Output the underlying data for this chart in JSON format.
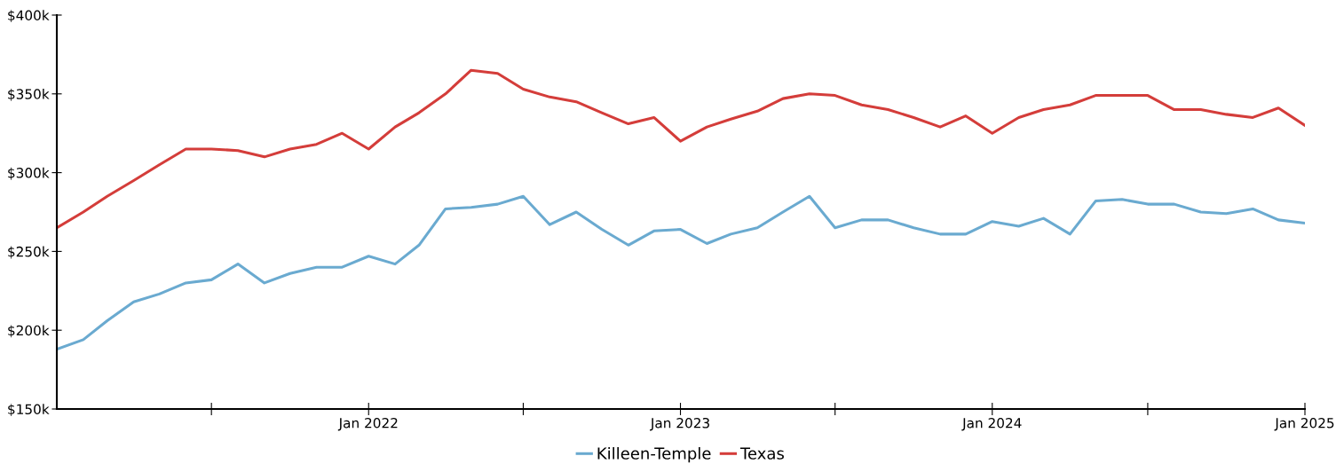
{
  "chart_data": {
    "type": "line",
    "x": [
      "2021-01",
      "2021-02",
      "2021-03",
      "2021-04",
      "2021-05",
      "2021-06",
      "2021-07",
      "2021-08",
      "2021-09",
      "2021-10",
      "2021-11",
      "2021-12",
      "2022-01",
      "2022-02",
      "2022-03",
      "2022-04",
      "2022-05",
      "2022-06",
      "2022-07",
      "2022-08",
      "2022-09",
      "2022-10",
      "2022-11",
      "2022-12",
      "2023-01",
      "2023-02",
      "2023-03",
      "2023-04",
      "2023-05",
      "2023-06",
      "2023-07",
      "2023-08",
      "2023-09",
      "2023-10",
      "2023-11",
      "2023-12",
      "2024-01",
      "2024-02",
      "2024-03",
      "2024-04",
      "2024-05",
      "2024-06",
      "2024-07",
      "2024-08",
      "2024-09",
      "2024-10",
      "2024-11",
      "2024-12",
      "2025-01"
    ],
    "series": [
      {
        "name": "Killeen-Temple",
        "color": "#6aaad0",
        "values": [
          188,
          194,
          206,
          218,
          223,
          230,
          232,
          242,
          230,
          236,
          240,
          240,
          247,
          242,
          254,
          277,
          278,
          280,
          285,
          267,
          275,
          264,
          254,
          263,
          264,
          255,
          261,
          265,
          275,
          285,
          265,
          270,
          270,
          265,
          261,
          261,
          269,
          266,
          271,
          261,
          282,
          283,
          280,
          280,
          275,
          274,
          277,
          270,
          268
        ]
      },
      {
        "name": "Texas",
        "color": "#d43d3a",
        "values": [
          265,
          275,
          285,
          295,
          305,
          315,
          315,
          314,
          310,
          315,
          318,
          325,
          315,
          329,
          338,
          350,
          365,
          363,
          353,
          348,
          345,
          338,
          331,
          335,
          320,
          329,
          334,
          339,
          347,
          350,
          349,
          343,
          340,
          335,
          329,
          336,
          325,
          335,
          340,
          343,
          349,
          349,
          349,
          340,
          340,
          337,
          335,
          341,
          330
        ]
      }
    ],
    "xlim": [
      "2021-01",
      "2025-01"
    ],
    "xticks": [
      {
        "value": "2021-07",
        "label": null
      },
      {
        "value": "2022-01",
        "label": "Jan 2022"
      },
      {
        "value": "2022-07",
        "label": null
      },
      {
        "value": "2023-01",
        "label": "Jan 2023"
      },
      {
        "value": "2023-07",
        "label": null
      },
      {
        "value": "2024-01",
        "label": "Jan 2024"
      },
      {
        "value": "2024-07",
        "label": null
      },
      {
        "value": "2025-01",
        "label": "Jan 2025"
      }
    ],
    "ylim": [
      150,
      400
    ],
    "yticks": [
      {
        "value": 150,
        "label": "$150k"
      },
      {
        "value": 200,
        "label": "$200k"
      },
      {
        "value": 250,
        "label": "$250k"
      },
      {
        "value": 300,
        "label": "$300k"
      },
      {
        "value": 350,
        "label": "$350k"
      },
      {
        "value": 400,
        "label": "$400k"
      }
    ],
    "grid": false,
    "legend": "bottom",
    "marker": "none",
    "line_style": "solid"
  }
}
